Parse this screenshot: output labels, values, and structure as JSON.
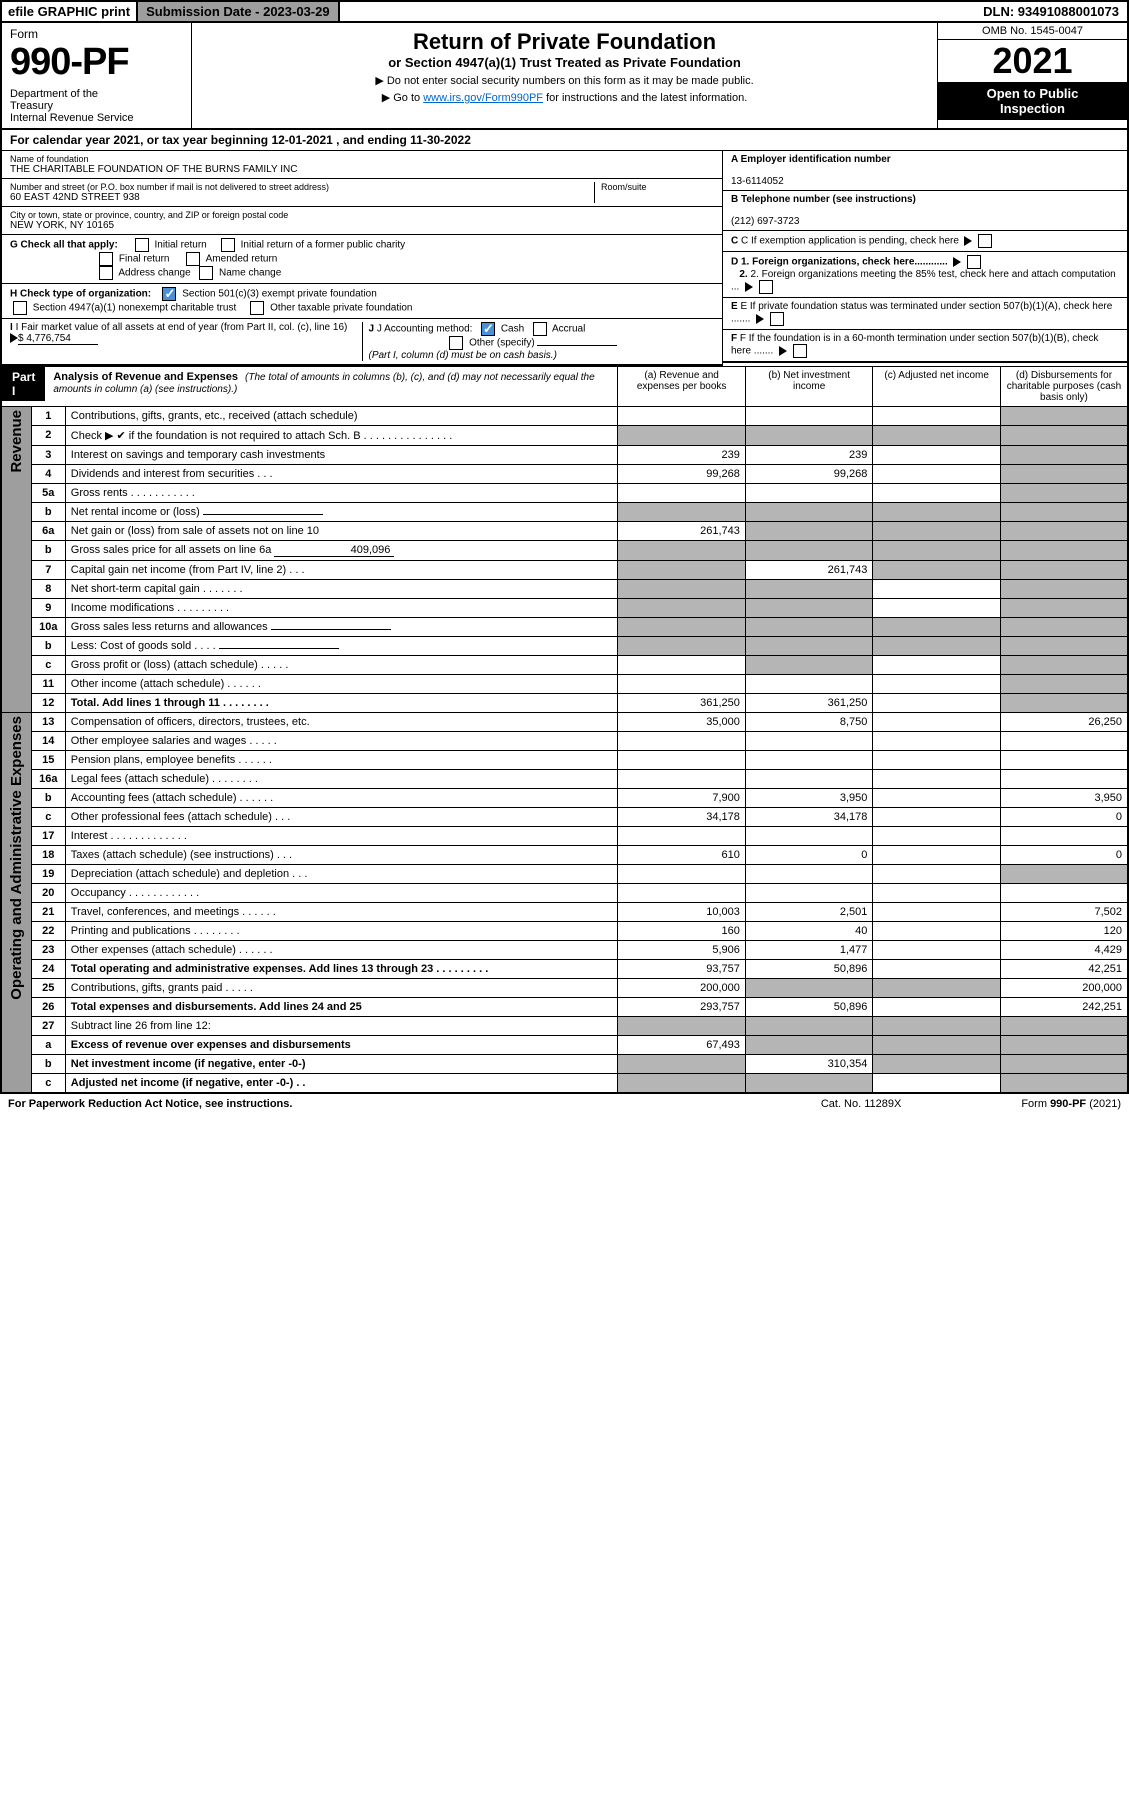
{
  "topbar": {
    "efile": "efile GRAPHIC print",
    "subdate_label": "Submission Date - 2023-03-29",
    "dln": "DLN: 93491088001073"
  },
  "header": {
    "form_label": "Form",
    "form_number": "990-PF",
    "dept": "Department of the Treasury\nInternal Revenue Service",
    "title": "Return of Private Foundation",
    "subtitle": "or Section 4947(a)(1) Trust Treated as Private Foundation",
    "instr1": "▶ Do not enter social security numbers on this form as it may be made public.",
    "instr2_pre": "▶ Go to ",
    "instr2_link": "www.irs.gov/Form990PF",
    "instr2_post": " for instructions and the latest information.",
    "omb": "OMB No. 1545-0047",
    "year": "2021",
    "open": "Open to Public Inspection"
  },
  "cal_year": "For calendar year 2021, or tax year beginning 12-01-2021             , and ending 11-30-2022",
  "info": {
    "name_lbl": "Name of foundation",
    "name": "THE CHARITABLE FOUNDATION OF THE BURNS FAMILY INC",
    "addr_lbl": "Number and street (or P.O. box number if mail is not delivered to street address)",
    "addr": "60 EAST 42ND STREET 938",
    "room_lbl": "Room/suite",
    "city_lbl": "City or town, state or province, country, and ZIP or foreign postal code",
    "city": "NEW YORK, NY  10165",
    "a_lbl": "A Employer identification number",
    "a_val": "13-6114052",
    "b_lbl": "B Telephone number (see instructions)",
    "b_val": "(212) 697-3723",
    "c_lbl": "C If exemption application is pending, check here",
    "d1": "D 1. Foreign organizations, check here............",
    "d2": "2. Foreign organizations meeting the 85% test, check here and attach computation ...",
    "e_lbl": "E  If private foundation status was terminated under section 507(b)(1)(A), check here .......",
    "f_lbl": "F  If the foundation is in a 60-month termination under section 507(b)(1)(B), check here .......",
    "g_lbl": "G Check all that apply:",
    "g_opts": [
      "Initial return",
      "Initial return of a former public charity",
      "Final return",
      "Amended return",
      "Address change",
      "Name change"
    ],
    "h_lbl": "H Check type of organization:",
    "h1": "Section 501(c)(3) exempt private foundation",
    "h2": "Section 4947(a)(1) nonexempt charitable trust",
    "h3": "Other taxable private foundation",
    "i_lbl": "I Fair market value of all assets at end of year (from Part II, col. (c), line 16)",
    "i_val": "$  4,776,754",
    "j_lbl": "J Accounting method:",
    "j_cash": "Cash",
    "j_acc": "Accrual",
    "j_other": "Other (specify)",
    "j_note": "(Part I, column (d) must be on cash basis.)"
  },
  "part1": {
    "label": "Part I",
    "title": "Analysis of Revenue and Expenses",
    "title_note": "(The total of amounts in columns (b), (c), and (d) may not necessarily equal the amounts in column (a) (see instructions).)",
    "col_a": "(a)   Revenue and expenses per books",
    "col_b": "(b)   Net investment income",
    "col_c": "(c)   Adjusted net income",
    "col_d": "(d)   Disbursements for charitable purposes (cash basis only)"
  },
  "side_labels": {
    "rev": "Revenue",
    "exp": "Operating and Administrative Expenses"
  },
  "rows": [
    {
      "n": "1",
      "d": "Contributions, gifts, grants, etc., received (attach schedule)",
      "a": "",
      "b": "",
      "c": "",
      "e": "",
      "shade_e": true
    },
    {
      "n": "2",
      "d": "Check ▶ ✔ if the foundation is not required to attach Sch. B       .   .   .   .   .   .   .   .   .   .   .   .   .   .   .",
      "a": "",
      "b": "",
      "c": "",
      "e": "",
      "shade_all": true
    },
    {
      "n": "3",
      "d": "Interest on savings and temporary cash investments",
      "a": "239",
      "b": "239",
      "c": "",
      "e": "",
      "shade_e": true
    },
    {
      "n": "4",
      "d": "Dividends and interest from securities     .    .    .",
      "a": "99,268",
      "b": "99,268",
      "c": "",
      "e": "",
      "shade_e": true
    },
    {
      "n": "5a",
      "d": "Gross rents       .    .    .    .    .    .    .    .    .    .    .",
      "a": "",
      "b": "",
      "c": "",
      "e": "",
      "shade_e": true
    },
    {
      "n": "b",
      "d": "Net rental income or (loss)",
      "a": "",
      "b": "",
      "c": "",
      "e": "",
      "inline": true,
      "shade_abce": true
    },
    {
      "n": "6a",
      "d": "Net gain or (loss) from sale of assets not on line 10",
      "a": "261,743",
      "b": "",
      "c": "",
      "e": "",
      "shade_bce": true
    },
    {
      "n": "b",
      "d": "Gross sales price for all assets on line 6a",
      "a": "",
      "b": "",
      "c": "",
      "e": "",
      "inline": true,
      "inline_val": "409,096",
      "shade_abce": true
    },
    {
      "n": "7",
      "d": "Capital gain net income (from Part IV, line 2)    .    .    .",
      "a": "",
      "b": "261,743",
      "c": "",
      "e": "",
      "shade_ace": true
    },
    {
      "n": "8",
      "d": "Net short-term capital gain   .    .    .    .    .    .    .",
      "a": "",
      "b": "",
      "c": "",
      "e": "",
      "shade_abe": true
    },
    {
      "n": "9",
      "d": "Income modifications  .    .    .    .    .    .    .    .    .",
      "a": "",
      "b": "",
      "c": "",
      "e": "",
      "shade_abe": true
    },
    {
      "n": "10a",
      "d": "Gross sales less returns and allowances",
      "a": "",
      "b": "",
      "c": "",
      "e": "",
      "inline": true,
      "shade_abce": true
    },
    {
      "n": "b",
      "d": "Less: Cost of goods sold     .    .    .    .",
      "a": "",
      "b": "",
      "c": "",
      "e": "",
      "inline": true,
      "shade_abce": true
    },
    {
      "n": "c",
      "d": "Gross profit or (loss) (attach schedule)      .    .    .    .    .",
      "a": "",
      "b": "",
      "c": "",
      "e": "",
      "shade_be": true
    },
    {
      "n": "11",
      "d": "Other income (attach schedule)    .    .    .    .    .    .",
      "a": "",
      "b": "",
      "c": "",
      "e": "",
      "shade_e": true
    },
    {
      "n": "12",
      "d": "Total. Add lines 1 through 11   .    .    .    .    .    .    .    .",
      "a": "361,250",
      "b": "361,250",
      "c": "",
      "e": "",
      "bold": true,
      "shade_e": true
    }
  ],
  "exp_rows": [
    {
      "n": "13",
      "d": "Compensation of officers, directors, trustees, etc.",
      "a": "35,000",
      "b": "8,750",
      "c": "",
      "e": "26,250"
    },
    {
      "n": "14",
      "d": "Other employee salaries and wages     .    .    .    .    .",
      "a": "",
      "b": "",
      "c": "",
      "e": ""
    },
    {
      "n": "15",
      "d": "Pension plans, employee benefits   .    .    .    .    .    .",
      "a": "",
      "b": "",
      "c": "",
      "e": ""
    },
    {
      "n": "16a",
      "d": "Legal fees (attach schedule)  .    .    .    .    .    .    .    .",
      "a": "",
      "b": "",
      "c": "",
      "e": ""
    },
    {
      "n": "b",
      "d": "Accounting fees (attach schedule)  .    .    .    .    .    .",
      "a": "7,900",
      "b": "3,950",
      "c": "",
      "e": "3,950"
    },
    {
      "n": "c",
      "d": "Other professional fees (attach schedule)     .    .    .",
      "a": "34,178",
      "b": "34,178",
      "c": "",
      "e": "0"
    },
    {
      "n": "17",
      "d": "Interest  .    .    .    .    .    .    .    .    .    .    .    .    .",
      "a": "",
      "b": "",
      "c": "",
      "e": ""
    },
    {
      "n": "18",
      "d": "Taxes (attach schedule) (see instructions)      .    .    .",
      "a": "610",
      "b": "0",
      "c": "",
      "e": "0"
    },
    {
      "n": "19",
      "d": "Depreciation (attach schedule) and depletion    .    .    .",
      "a": "",
      "b": "",
      "c": "",
      "e": "",
      "shade_e": true
    },
    {
      "n": "20",
      "d": "Occupancy  .    .    .    .    .    .    .    .    .    .    .    .",
      "a": "",
      "b": "",
      "c": "",
      "e": ""
    },
    {
      "n": "21",
      "d": "Travel, conferences, and meetings  .    .    .    .    .    .",
      "a": "10,003",
      "b": "2,501",
      "c": "",
      "e": "7,502"
    },
    {
      "n": "22",
      "d": "Printing and publications  .    .    .    .    .    .    .    .",
      "a": "160",
      "b": "40",
      "c": "",
      "e": "120"
    },
    {
      "n": "23",
      "d": "Other expenses (attach schedule)  .    .    .    .    .    .",
      "a": "5,906",
      "b": "1,477",
      "c": "",
      "e": "4,429"
    },
    {
      "n": "24",
      "d": "Total operating and administrative expenses. Add lines 13 through 23   .    .    .    .    .    .    .    .    .",
      "a": "93,757",
      "b": "50,896",
      "c": "",
      "e": "42,251",
      "bold": true
    },
    {
      "n": "25",
      "d": "Contributions, gifts, grants paid     .    .    .    .    .",
      "a": "200,000",
      "b": "",
      "c": "",
      "e": "200,000",
      "shade_bc": true
    },
    {
      "n": "26",
      "d": "Total expenses and disbursements. Add lines 24 and 25",
      "a": "293,757",
      "b": "50,896",
      "c": "",
      "e": "242,251",
      "bold": true
    },
    {
      "n": "27",
      "d": "Subtract line 26 from line 12:",
      "a": "",
      "b": "",
      "c": "",
      "e": "",
      "shade_abce": true
    },
    {
      "n": "a",
      "d": "Excess of revenue over expenses and disbursements",
      "a": "67,493",
      "b": "",
      "c": "",
      "e": "",
      "bold": true,
      "shade_bce": true
    },
    {
      "n": "b",
      "d": "Net investment income (if negative, enter -0-)",
      "a": "",
      "b": "310,354",
      "c": "",
      "e": "",
      "bold": true,
      "shade_ace": true
    },
    {
      "n": "c",
      "d": "Adjusted net income (if negative, enter -0-)    .    .",
      "a": "",
      "b": "",
      "c": "",
      "e": "",
      "bold": true,
      "shade_abe": true
    }
  ],
  "footer": {
    "left": "For Paperwork Reduction Act Notice, see instructions.",
    "mid": "Cat. No. 11289X",
    "right": "Form 990-PF (2021)"
  },
  "colors": {
    "shade": "#b5b5b5",
    "link": "#0066cc",
    "check": "#4a90d9"
  }
}
